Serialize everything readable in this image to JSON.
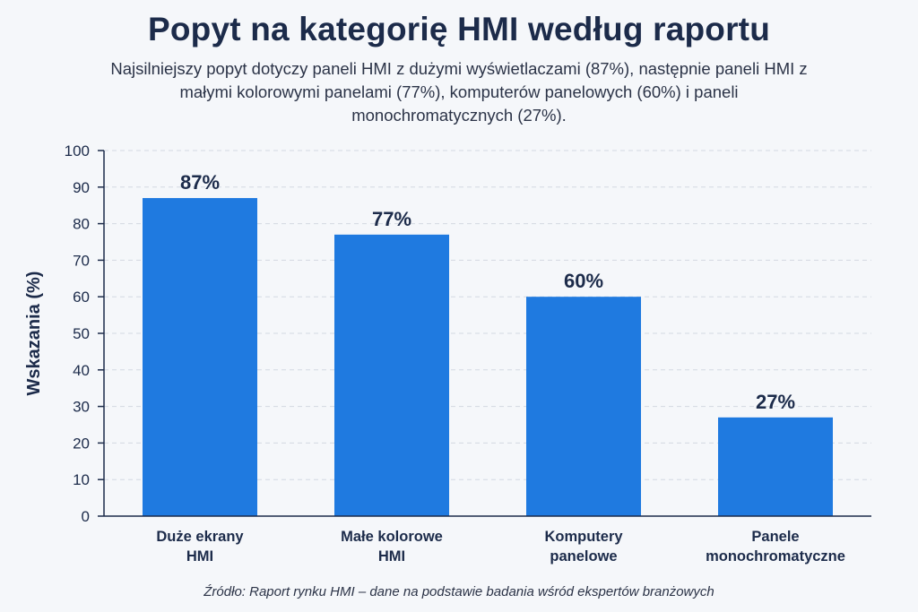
{
  "chart_data": {
    "type": "bar",
    "title": "Popyt na kategorię HMI według raportu",
    "subtitle": "Najsilniejszy popyt dotyczy paneli HMI z dużymi wyświetlaczami (87%), następnie paneli HMI z małymi kolorowymi panelami (77%), komputerów panelowych (60%) i paneli monochromatycznych (27%).",
    "categories": [
      [
        "Duże ekrany",
        "HMI"
      ],
      [
        "Małe kolorowe",
        "HMI"
      ],
      [
        "Komputery",
        "panelowe"
      ],
      [
        "Panele",
        "monochromatyczne"
      ]
    ],
    "values": [
      87,
      77,
      60,
      27
    ],
    "data_labels": [
      "87%",
      "77%",
      "60%",
      "27%"
    ],
    "xlabel": "",
    "ylabel": "Wskazania (%)",
    "ylim": [
      0,
      100
    ],
    "yticks": [
      0,
      10,
      20,
      30,
      40,
      50,
      60,
      70,
      80,
      90,
      100
    ],
    "grid": true,
    "legend": "none",
    "bar_color": "#1f7ae0",
    "source": "Źródło: Raport rynku HMI – dane na podstawie badania wśród ekspertów branżowych"
  }
}
